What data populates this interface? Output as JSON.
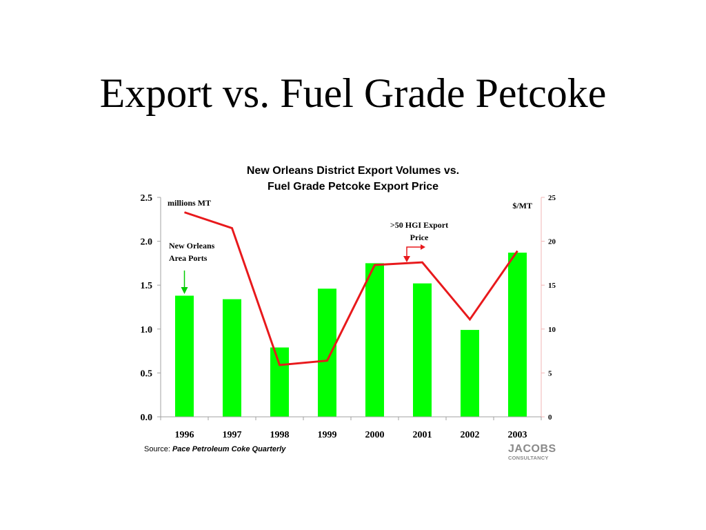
{
  "slide": {
    "title": "Export vs. Fuel Grade Petcoke"
  },
  "chart_data": {
    "type": "bar",
    "title": "New Orleans District Export Volumes vs. Fuel Grade Petcoke Export Price",
    "title_lines": [
      "New Orleans District Export Volumes vs.",
      "Fuel Grade Petcoke Export Price"
    ],
    "categories": [
      "1996",
      "1997",
      "1998",
      "1999",
      "2000",
      "2001",
      "2002",
      "2003"
    ],
    "series": [
      {
        "name": "New Orleans Area Ports",
        "type": "bar",
        "axis": "left",
        "color": "#00ff00",
        "values": [
          1.38,
          1.34,
          0.79,
          1.46,
          1.75,
          1.52,
          0.99,
          1.87
        ]
      },
      {
        "name": ">50 HGI Export Price",
        "type": "line",
        "axis": "right",
        "color": "#e8191c",
        "values": [
          23.3,
          21.5,
          5.9,
          6.4,
          17.3,
          17.6,
          11.1,
          18.9
        ]
      }
    ],
    "y_left": {
      "label": "millions MT",
      "range": [
        0,
        2.5
      ],
      "ticks": [
        "0.0",
        "0.5",
        "1.0",
        "1.5",
        "2.0",
        "2.5"
      ],
      "tick_values": [
        0,
        0.5,
        1.0,
        1.5,
        2.0,
        2.5
      ]
    },
    "y_right": {
      "label": "$/MT",
      "range": [
        0,
        25
      ],
      "ticks": [
        "0",
        "5",
        "10",
        "15",
        "20",
        "25"
      ],
      "tick_values": [
        0,
        5,
        10,
        15,
        20,
        25
      ]
    },
    "annotations": [
      {
        "id": "bar-series",
        "lines": [
          "New Orleans",
          "Area Ports"
        ],
        "color": "#00cc00"
      },
      {
        "id": "line-series",
        "lines": [
          ">50 HGI  Export",
          "Price"
        ],
        "color": "#e8191c"
      }
    ],
    "grid": false
  },
  "source": {
    "prefix": "Source: ",
    "publication": "Pace Petroleum Coke Quarterly"
  },
  "logo": {
    "name": "JACOBS",
    "subtitle": "CONSULTANCY"
  }
}
